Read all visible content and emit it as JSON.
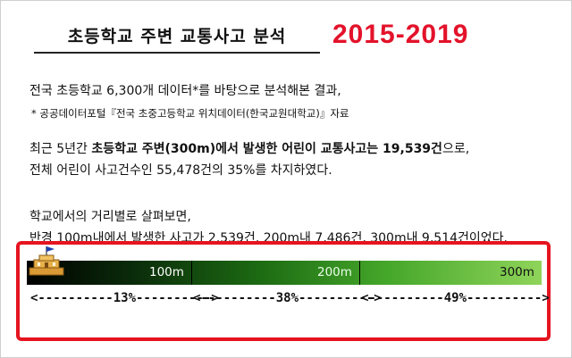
{
  "title": "초등학교 주변 교통사고 분석",
  "year_range": "2015-2019",
  "para1": "전국 초등학교 6,300개 데이터*를 바탕으로 분석해본 결과,",
  "footnote": "* 공공데이터포털『전국 초중고등학교 위치데이터(한국교원대학교)』자료",
  "para2": {
    "prefix": "최근 5년간 ",
    "bold": "초등학교 주변(300m)에서 발생한 어린이 교통사고는 19,539건",
    "suffix": "으로,"
  },
  "para3": "전체 어린이 사고건수인 55,478건의 35%를 차지하였다.",
  "para4": "학교에서의 거리별로 살펴보면,",
  "para5": "반경 100m내에서 발생한 사고가 2,539건, 200m내 7,486건, 300m내 9,514건이었다.",
  "distance_bar": {
    "labels": [
      "100m",
      "200m",
      "300m"
    ],
    "shares": [
      "<----------13%---------->",
      "<----------38%---------->",
      "<----------49%---------->"
    ],
    "share_values": [
      13,
      38,
      49
    ]
  },
  "icons": {
    "school": "school-flag-icon"
  },
  "colors": {
    "year": "#e3122a",
    "highlight_box": "#e5141f"
  }
}
